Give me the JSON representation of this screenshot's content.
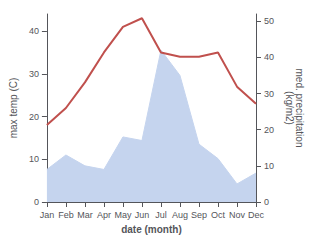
{
  "chart_data": {
    "type": "line",
    "xlabel": "date (month)",
    "ylabel": "max temp (C)",
    "y2label": "med. precipitation\n(kg/m2)",
    "categories": [
      "Jan",
      "Feb",
      "Mar",
      "Apr",
      "May",
      "Jun",
      "Jul",
      "Aug",
      "Sep",
      "Oct",
      "Nov",
      "Dec"
    ],
    "series": [
      {
        "type": "area",
        "axis": "y2",
        "color": "#c5d4ee",
        "values": [
          9,
          13,
          10,
          9,
          18,
          17,
          42,
          35,
          16,
          12,
          5,
          8
        ]
      },
      {
        "type": "line",
        "color": "#c0504d",
        "values": [
          18,
          22,
          28,
          35,
          41,
          43,
          35,
          34,
          34,
          35,
          27,
          23
        ]
      }
    ],
    "ylim": [
      0,
      44
    ],
    "yticks": [
      0,
      10,
      20,
      30,
      40
    ],
    "y2lim": [
      0,
      52
    ],
    "y2ticks": [
      0,
      10,
      20,
      30,
      40,
      50
    ],
    "grid": false
  }
}
